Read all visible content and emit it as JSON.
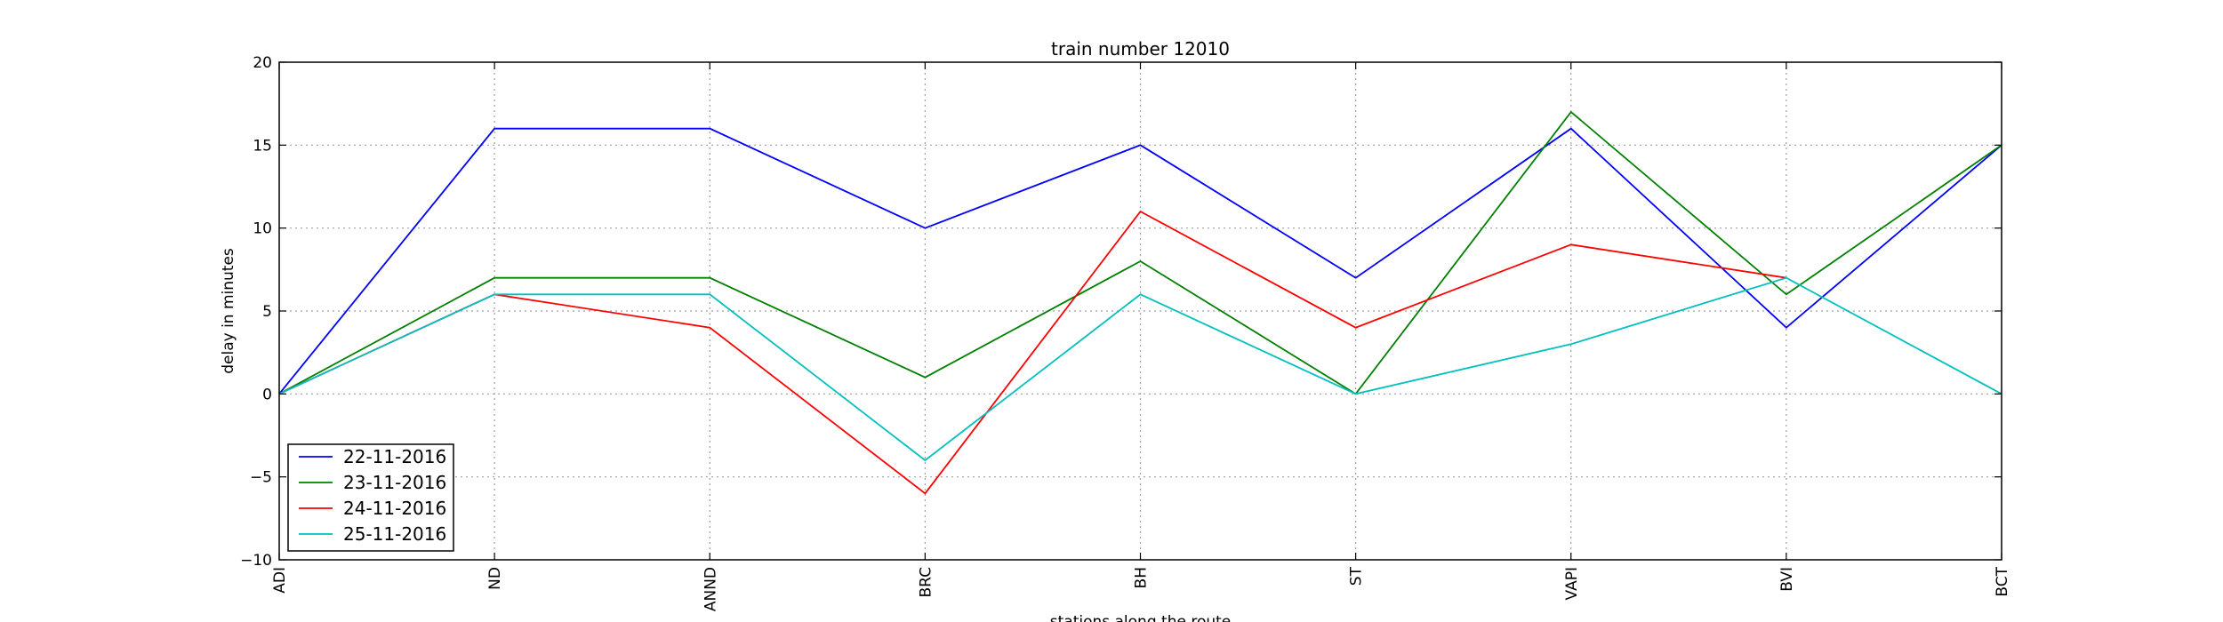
{
  "chart_data": {
    "type": "line",
    "title": "train number 12010",
    "xlabel": "stations along the route",
    "ylabel": "delay in minutes",
    "categories": [
      "ADI",
      "ND",
      "ANND",
      "BRC",
      "BH",
      "ST",
      "VAPI",
      "BVI",
      "BCT"
    ],
    "ylim": [
      -10,
      20
    ],
    "yticks": [
      -10,
      -5,
      0,
      5,
      10,
      15,
      20
    ],
    "ytick_labels": [
      "−10",
      "−5",
      "0",
      "5",
      "10",
      "15",
      "20"
    ],
    "grid": true,
    "legend_position": "lower-left",
    "series": [
      {
        "name": "22-11-2016",
        "color": "#0000ff",
        "values": [
          0,
          16,
          16,
          10,
          15,
          7,
          16,
          4,
          15
        ]
      },
      {
        "name": "23-11-2016",
        "color": "#008000",
        "values": [
          0,
          7,
          7,
          1,
          8,
          0,
          17,
          6,
          15
        ]
      },
      {
        "name": "24-11-2016",
        "color": "#ff0000",
        "values": [
          0,
          6,
          4,
          -6,
          11,
          4,
          9,
          7,
          null
        ]
      },
      {
        "name": "25-11-2016",
        "color": "#00bfbf",
        "values": [
          0,
          6,
          6,
          -4,
          6,
          0,
          3,
          7,
          0
        ]
      }
    ]
  }
}
